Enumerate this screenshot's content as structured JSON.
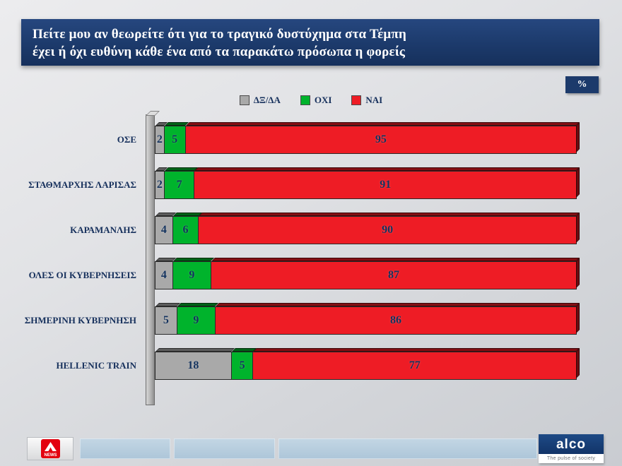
{
  "title": {
    "line1": "Πείτε μου αν θεωρείτε ότι για το τραγικό δυστύχημα στα Τέμπη",
    "line2": "έχει ή όχι ευθύνη κάθε ένα από τα παρακάτω πρόσωπα η φορείς"
  },
  "unit_badge": "%",
  "chart_data": {
    "type": "bar",
    "orientation": "horizontal",
    "stacked": true,
    "unit": "%",
    "legend_position": "top",
    "xlim": [
      0,
      102
    ],
    "categories": [
      "ΟΣΕ",
      "ΣΤΑΘΜΑΡΧΗΣ ΛΑΡΙΣΑΣ",
      "ΚΑΡΑΜΑΝΛΗΣ",
      "ΟΛΕΣ ΟΙ ΚΥΒΕΡΝΗΣΕΙΣ",
      "ΣΗΜΕΡΙΝΗ ΚΥΒΕΡΝΗΣΗ",
      "HELLENIC TRAIN"
    ],
    "series": [
      {
        "name": "ΔΞ/ΔΑ",
        "color": "#A9A9A9",
        "values": [
          2,
          2,
          4,
          4,
          5,
          18
        ]
      },
      {
        "name": "ΟΧΙ",
        "color": "#00B32C",
        "values": [
          5,
          7,
          6,
          9,
          9,
          5
        ]
      },
      {
        "name": "ΝΑΙ",
        "color": "#EE1C25",
        "values": [
          95,
          91,
          90,
          87,
          86,
          77
        ]
      }
    ],
    "title": "Πείτε μου αν θεωρείτε ότι για το τραγικό δυστύχημα στα Τέμπη έχει ή όχι ευθύνη κάθε ένα από τα παρακάτω πρόσωπα η φορείς"
  },
  "colors": {
    "title_bar": "#1C3A6B",
    "value_text": "#14335F",
    "background": "#D9DBDE"
  },
  "footer": {
    "alpha_news_label": "NEWS",
    "alco_name": "alco",
    "alco_tagline": "The pulse of society"
  }
}
